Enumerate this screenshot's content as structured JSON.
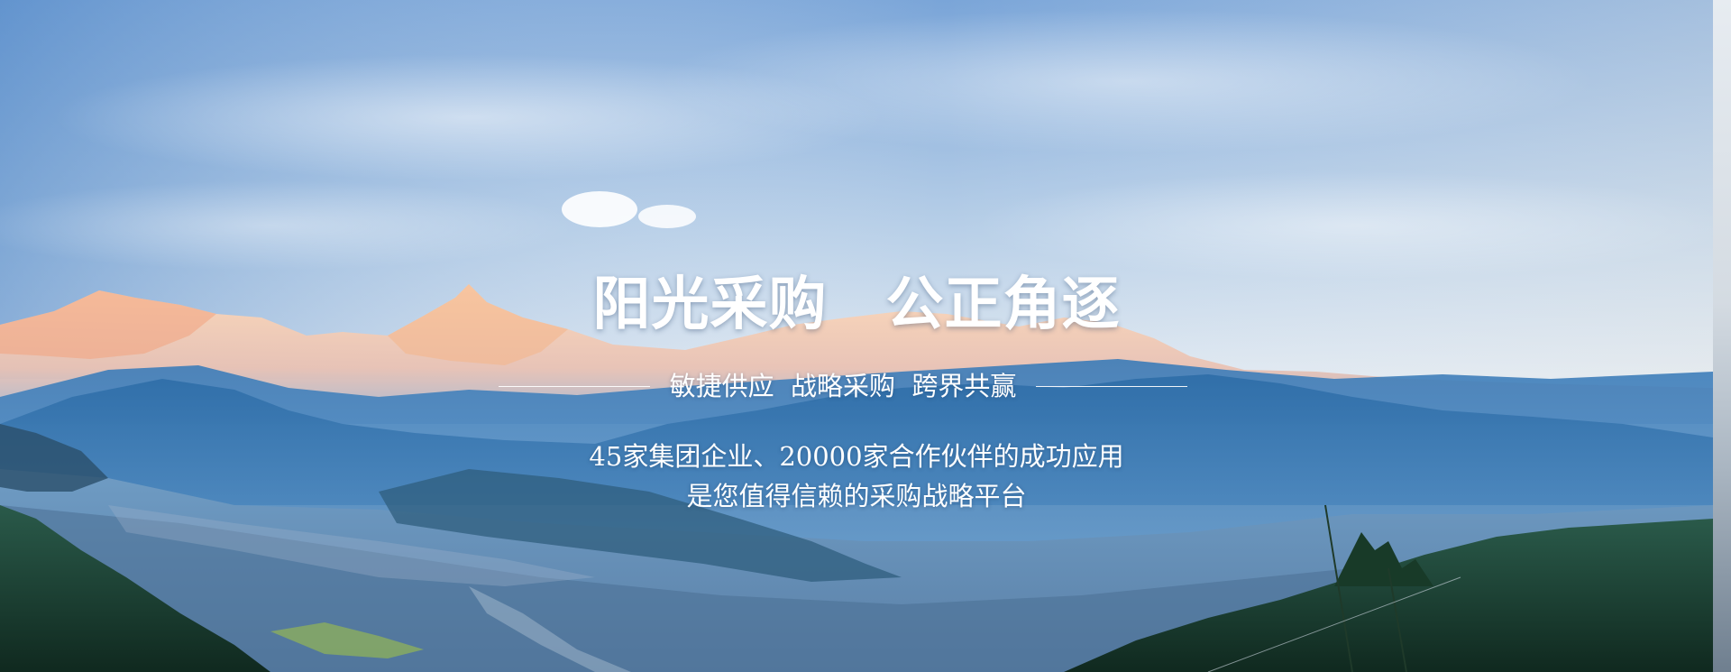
{
  "hero": {
    "headline": "阳光采购　公正角逐",
    "tagline": "敏捷供应  战略采购  跨界共赢",
    "description_line1": "45家集团企业、20000家合作伙伴的成功应用",
    "description_line2": "是您值得信赖的采购战略平台"
  },
  "colors": {
    "sky_top": "#7fa9db",
    "sky_bottom": "#e9eff5",
    "mountain_blue": "#2d6aa3",
    "forest_dark": "#173b2a",
    "text": "#ffffff"
  }
}
